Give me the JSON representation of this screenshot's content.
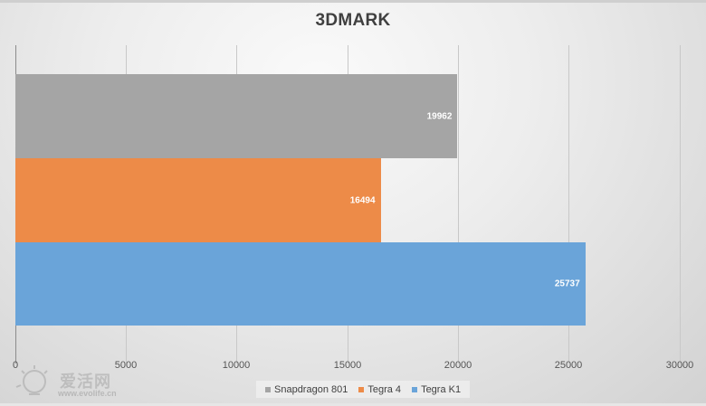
{
  "chart_data": {
    "type": "bar",
    "orientation": "horizontal",
    "title": "3DMARK",
    "xlabel": "",
    "ylabel": "",
    "xlim": [
      0,
      30000
    ],
    "x_ticks": [
      "0",
      "5000",
      "10000",
      "15000",
      "20000",
      "25000",
      "30000"
    ],
    "grid": "vertical",
    "legend_position": "bottom",
    "series": [
      {
        "name": "Snapdragon 801",
        "value": 19962,
        "label": "19962",
        "color": "#a5a5a5"
      },
      {
        "name": "Tegra 4",
        "value": 16494,
        "label": "16494",
        "color": "#ed8b48"
      },
      {
        "name": "Tegra K1",
        "value": 25737,
        "label": "25737",
        "color": "#6aa4d9"
      }
    ]
  },
  "legend": {
    "items": [
      {
        "label": "Snapdragon 801",
        "color": "#a5a5a5"
      },
      {
        "label": "Tegra 4",
        "color": "#ed8b48"
      },
      {
        "label": "Tegra K1",
        "color": "#6aa4d9"
      }
    ]
  },
  "watermark": {
    "cn": "爱活网",
    "url": "www.evolife.cn"
  }
}
